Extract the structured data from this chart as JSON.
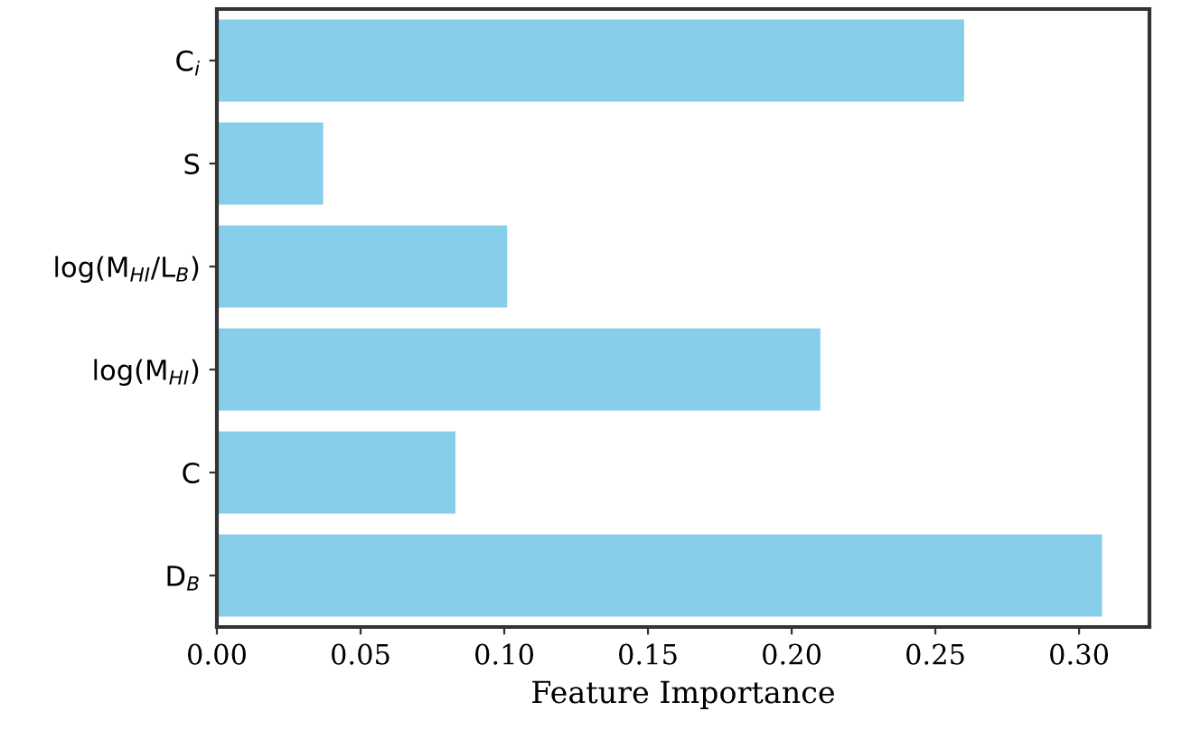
{
  "chart_data": {
    "type": "bar",
    "orientation": "horizontal",
    "xlabel": "Feature Importance",
    "categories": [
      "C$_{i}$",
      "S",
      "log(M$_{HI}$/L$_{B}$)",
      "log(M$_{HI}$)",
      "C",
      "D$_{B}$"
    ],
    "values": [
      0.26,
      0.037,
      0.101,
      0.21,
      0.083,
      0.308
    ],
    "color": "#87ceeb",
    "xlim": [
      0,
      0.3245
    ],
    "xticks": [
      {
        "value": 0,
        "label": "0.00"
      },
      {
        "value": 0.05,
        "label": "0.05"
      },
      {
        "value": 0.1,
        "label": "0.10"
      },
      {
        "value": 0.15,
        "label": "0.15"
      },
      {
        "value": 0.2,
        "label": "0.20"
      },
      {
        "value": 0.25,
        "label": "0.25"
      },
      {
        "value": 0.3,
        "label": "0.30"
      }
    ],
    "grid": false
  }
}
